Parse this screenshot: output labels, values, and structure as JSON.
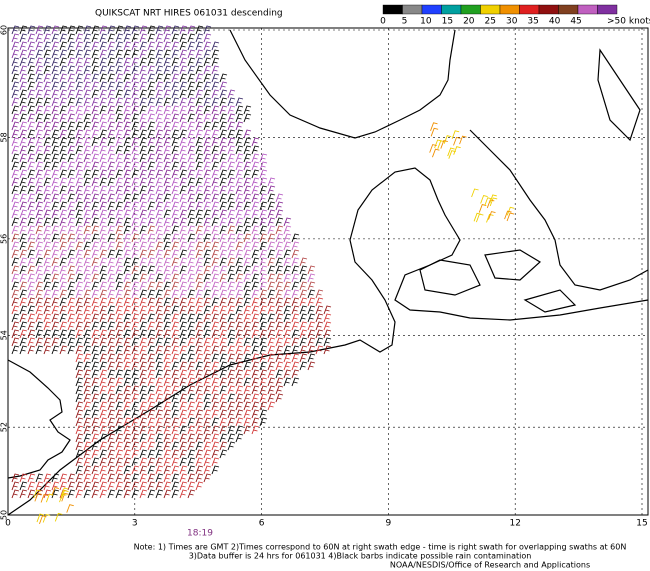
{
  "header": {
    "title": "QUIKSCAT NRT HIRES 061031 descending"
  },
  "colorbar": {
    "colors": [
      "#000000",
      "#888888",
      "#2040ff",
      "#00a0a0",
      "#20a020",
      "#f0d000",
      "#f09000",
      "#e02020",
      "#901010",
      "#804020",
      "#c060c0",
      "#8030a0"
    ],
    "ticks": [
      0,
      5,
      10,
      15,
      20,
      25,
      30,
      35,
      40,
      45
    ],
    "last_label": ">50 knots"
  },
  "map": {
    "lon_ticks": [
      0,
      3,
      6,
      9,
      12,
      15
    ],
    "lat_ticks": [
      60,
      58,
      56,
      54,
      52,
      50
    ],
    "swath_time": "18:19"
  },
  "notes": [
    "Note: 1) Times are GMT 2)Times correspond to 60N at right swath edge - time is right swath for overlapping swaths at 60N",
    "3)Data buffer is 24 hrs for 061031 4)Black barbs indicate possible rain contamination",
    "NOAA/NESDIS/Office of Research and Applications"
  ]
}
